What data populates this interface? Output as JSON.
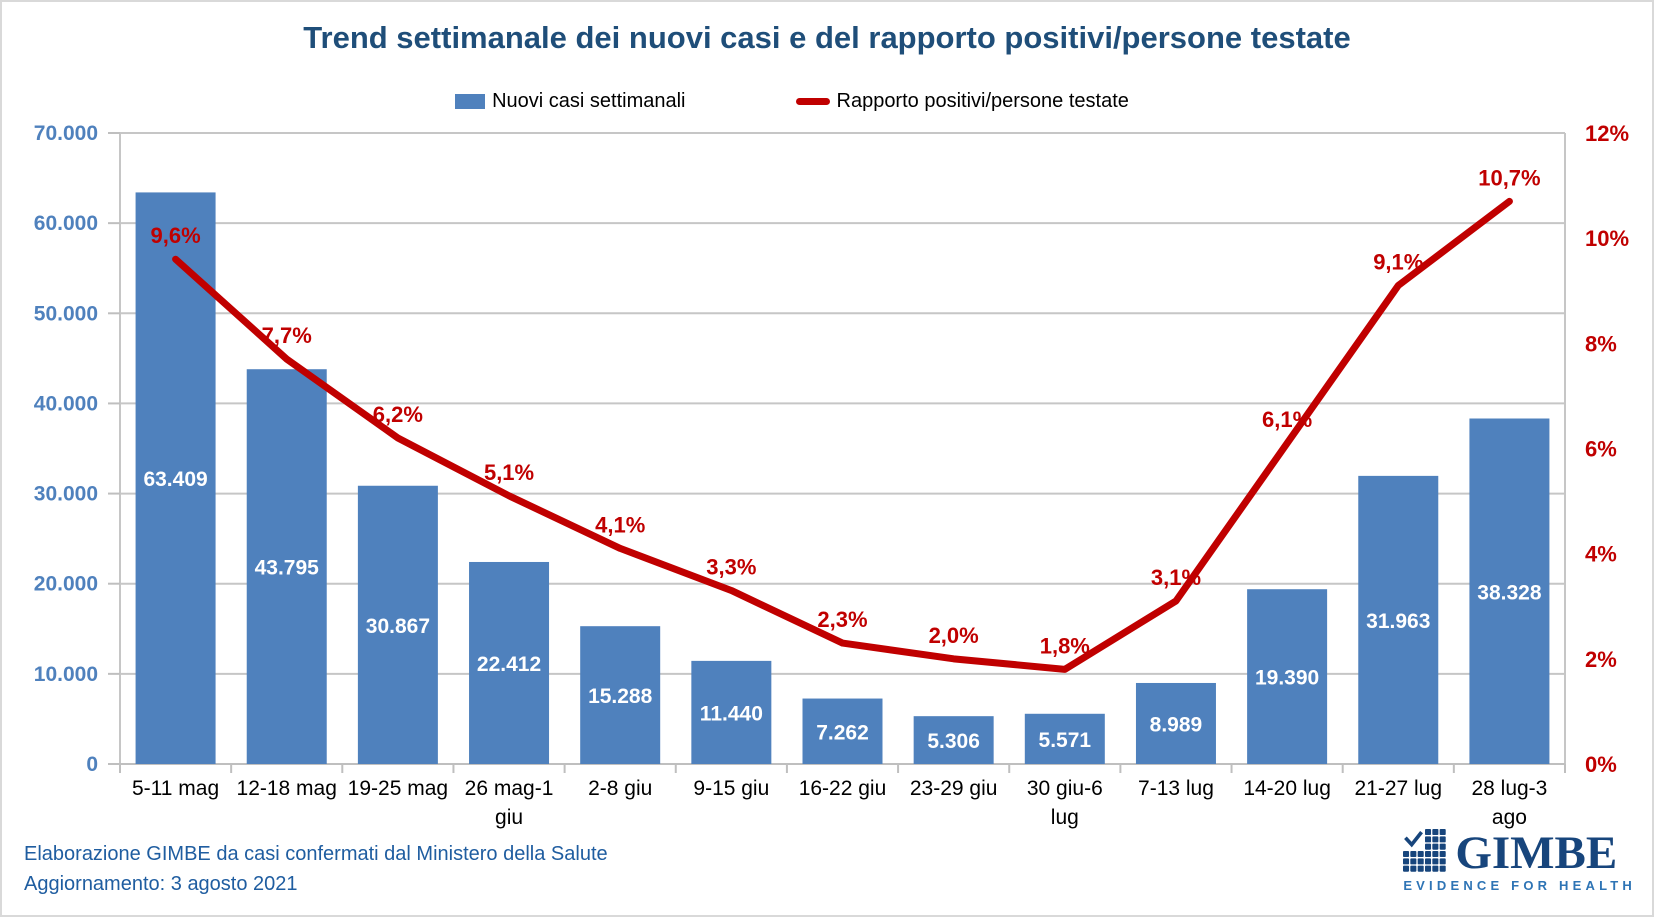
{
  "title": "Trend settimanale dei nuovi casi e del rapporto positivi/persone testate",
  "legend": {
    "bar_label": "Nuovi casi settimanali",
    "line_label": "Rapporto positivi/persone testate"
  },
  "footer": {
    "line1": "Elaborazione GIMBE da casi confermati dal Ministero della Salute",
    "line2": "Aggiornamento: 3 agosto 2021"
  },
  "logo": {
    "name": "GIMBE",
    "tagline": "EVIDENCE FOR HEALTH"
  },
  "colors": {
    "bar": "#4F81BD",
    "line": "#C00000",
    "title": "#1F4E79",
    "left_axis_labels": "#4F81BD",
    "right_axis_labels": "#C00000",
    "grid": "#C6C6C6",
    "axis_line": "#BFBFBF",
    "category_labels": "#000000",
    "bar_value_labels": "#FFFFFF",
    "footer_text": "#1F5DA0",
    "logo_dark_blue": "#17457C",
    "logo_light_blue": "#2E74B5"
  },
  "chart_data": {
    "type": "bar+line combo",
    "categories": [
      "5-11 mag",
      "12-18 mag",
      "19-25 mag",
      "26 mag-1 giu",
      "2-8 giu",
      "9-15 giu",
      "16-22 giu",
      "23-29 giu",
      "30 giu-6 lug",
      "7-13 lug",
      "14-20 lug",
      "21-27 lug",
      "28 lug-3 ago"
    ],
    "categories_lines": [
      [
        "5-11 mag"
      ],
      [
        "12-18 mag"
      ],
      [
        "19-25 mag"
      ],
      [
        "26 mag-1",
        "giu"
      ],
      [
        "2-8 giu"
      ],
      [
        "9-15 giu"
      ],
      [
        "16-22 giu"
      ],
      [
        "23-29 giu"
      ],
      [
        "30 giu-6",
        "lug"
      ],
      [
        "7-13 lug"
      ],
      [
        "14-20 lug"
      ],
      [
        "21-27 lug"
      ],
      [
        "28 lug-3",
        "ago"
      ]
    ],
    "series": [
      {
        "name": "Nuovi casi settimanali",
        "type": "bar",
        "axis": "left",
        "values": [
          63409,
          43795,
          30867,
          22412,
          15288,
          11440,
          7262,
          5306,
          5571,
          8989,
          19390,
          31963,
          38328
        ],
        "labels": [
          "63.409",
          "43.795",
          "30.867",
          "22.412",
          "15.288",
          "11.440",
          "7.262",
          "5.306",
          "5.571",
          "8.989",
          "19.390",
          "31.963",
          "38.328"
        ]
      },
      {
        "name": "Rapporto positivi/persone testate",
        "type": "line",
        "axis": "right",
        "values": [
          9.6,
          7.7,
          6.2,
          5.1,
          4.1,
          3.3,
          2.3,
          2.0,
          1.8,
          3.1,
          6.1,
          9.1,
          10.7
        ],
        "labels": [
          "9,6%",
          "7,7%",
          "6,2%",
          "5,1%",
          "4,1%",
          "3,3%",
          "2,3%",
          "2,0%",
          "1,8%",
          "3,1%",
          "6,1%",
          "9,1%",
          "10,7%"
        ]
      }
    ],
    "left_axis": {
      "min": 0,
      "max": 70000,
      "step": 10000,
      "ticks": [
        "0",
        "10.000",
        "20.000",
        "30.000",
        "40.000",
        "50.000",
        "60.000",
        "70.000"
      ]
    },
    "right_axis": {
      "min": 0,
      "max": 12,
      "step": 2,
      "ticks": [
        "0%",
        "2%",
        "4%",
        "6%",
        "8%",
        "10%",
        "12%"
      ]
    },
    "grid": true,
    "legend_position": "top"
  }
}
